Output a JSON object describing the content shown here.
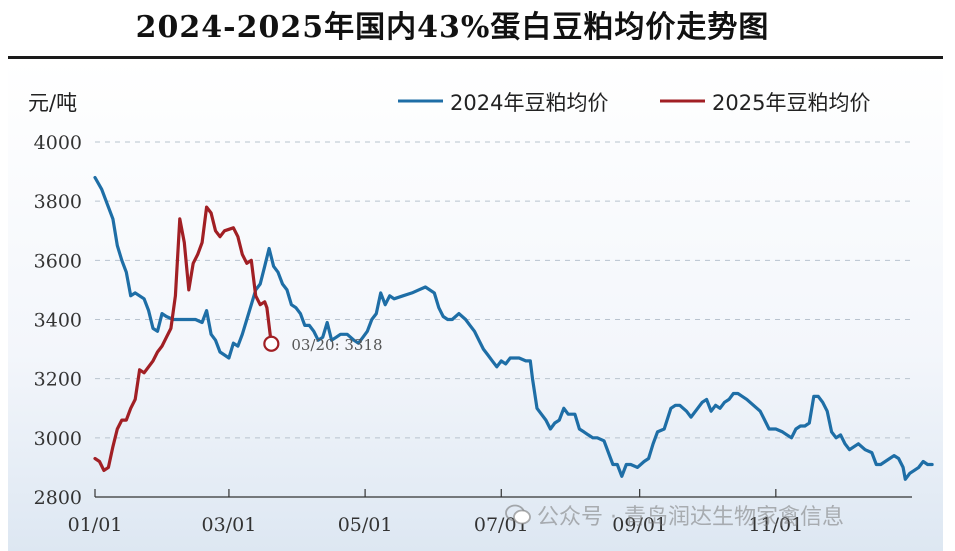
{
  "chart_data": {
    "type": "line",
    "title": "2024-2025年国内43%蛋白豆粕均价走势图",
    "ylabel": "元/吨",
    "ylim": [
      2800,
      4000
    ],
    "yticks": [
      "4000",
      "3800",
      "3600",
      "3400",
      "3200",
      "3000",
      "2800"
    ],
    "xticks": [
      "01/01",
      "03/01",
      "05/01",
      "07/01",
      "09/01",
      "11/01"
    ],
    "xtick_days": [
      0,
      60,
      121,
      182,
      244,
      305
    ],
    "xlim_days": [
      0,
      366
    ],
    "grid": "horizontal dashed",
    "legend_position": "top-right",
    "series": [
      {
        "name": "2024年豆粕均价",
        "color": "#1e6ea6",
        "points": [
          [
            0,
            3880
          ],
          [
            3,
            3840
          ],
          [
            6,
            3780
          ],
          [
            8,
            3740
          ],
          [
            10,
            3650
          ],
          [
            12,
            3600
          ],
          [
            14,
            3560
          ],
          [
            16,
            3480
          ],
          [
            18,
            3490
          ],
          [
            22,
            3470
          ],
          [
            24,
            3430
          ],
          [
            26,
            3370
          ],
          [
            28,
            3360
          ],
          [
            30,
            3420
          ],
          [
            32,
            3410
          ],
          [
            35,
            3400
          ],
          [
            40,
            3400
          ],
          [
            45,
            3400
          ],
          [
            48,
            3390
          ],
          [
            50,
            3430
          ],
          [
            52,
            3350
          ],
          [
            54,
            3330
          ],
          [
            56,
            3290
          ],
          [
            58,
            3280
          ],
          [
            60,
            3270
          ],
          [
            62,
            3320
          ],
          [
            64,
            3310
          ],
          [
            66,
            3350
          ],
          [
            68,
            3400
          ],
          [
            70,
            3450
          ],
          [
            72,
            3500
          ],
          [
            74,
            3520
          ],
          [
            76,
            3580
          ],
          [
            78,
            3640
          ],
          [
            80,
            3580
          ],
          [
            82,
            3560
          ],
          [
            84,
            3520
          ],
          [
            86,
            3500
          ],
          [
            88,
            3450
          ],
          [
            90,
            3440
          ],
          [
            92,
            3420
          ],
          [
            94,
            3380
          ],
          [
            96,
            3380
          ],
          [
            98,
            3360
          ],
          [
            100,
            3330
          ],
          [
            102,
            3340
          ],
          [
            104,
            3390
          ],
          [
            106,
            3330
          ],
          [
            108,
            3340
          ],
          [
            110,
            3350
          ],
          [
            113,
            3350
          ],
          [
            116,
            3330
          ],
          [
            118,
            3320
          ],
          [
            120,
            3340
          ],
          [
            122,
            3360
          ],
          [
            124,
            3400
          ],
          [
            126,
            3420
          ],
          [
            128,
            3490
          ],
          [
            130,
            3450
          ],
          [
            132,
            3480
          ],
          [
            134,
            3470
          ],
          [
            138,
            3480
          ],
          [
            142,
            3490
          ],
          [
            145,
            3500
          ],
          [
            148,
            3510
          ],
          [
            152,
            3490
          ],
          [
            154,
            3440
          ],
          [
            156,
            3410
          ],
          [
            158,
            3400
          ],
          [
            160,
            3400
          ],
          [
            163,
            3420
          ],
          [
            166,
            3400
          ],
          [
            168,
            3380
          ],
          [
            170,
            3360
          ],
          [
            172,
            3330
          ],
          [
            174,
            3300
          ],
          [
            176,
            3280
          ],
          [
            178,
            3260
          ],
          [
            180,
            3240
          ],
          [
            182,
            3260
          ],
          [
            184,
            3250
          ],
          [
            186,
            3270
          ],
          [
            190,
            3270
          ],
          [
            193,
            3260
          ],
          [
            195,
            3260
          ],
          [
            196,
            3200
          ],
          [
            198,
            3100
          ],
          [
            200,
            3080
          ],
          [
            202,
            3060
          ],
          [
            204,
            3030
          ],
          [
            206,
            3050
          ],
          [
            208,
            3060
          ],
          [
            210,
            3100
          ],
          [
            212,
            3080
          ],
          [
            215,
            3080
          ],
          [
            217,
            3030
          ],
          [
            219,
            3020
          ],
          [
            221,
            3010
          ],
          [
            223,
            3000
          ],
          [
            225,
            3000
          ],
          [
            228,
            2990
          ],
          [
            230,
            2950
          ],
          [
            232,
            2910
          ],
          [
            234,
            2910
          ],
          [
            236,
            2870
          ],
          [
            238,
            2910
          ],
          [
            240,
            2910
          ],
          [
            243,
            2900
          ],
          [
            246,
            2920
          ],
          [
            248,
            2930
          ],
          [
            250,
            2980
          ],
          [
            252,
            3020
          ],
          [
            255,
            3030
          ],
          [
            258,
            3100
          ],
          [
            260,
            3110
          ],
          [
            262,
            3110
          ],
          [
            265,
            3090
          ],
          [
            267,
            3070
          ],
          [
            270,
            3100
          ],
          [
            272,
            3120
          ],
          [
            274,
            3130
          ],
          [
            276,
            3090
          ],
          [
            278,
            3110
          ],
          [
            280,
            3100
          ],
          [
            282,
            3120
          ],
          [
            284,
            3130
          ],
          [
            286,
            3150
          ],
          [
            288,
            3150
          ],
          [
            290,
            3140
          ],
          [
            292,
            3130
          ],
          [
            295,
            3110
          ],
          [
            298,
            3090
          ],
          [
            300,
            3060
          ],
          [
            302,
            3030
          ],
          [
            305,
            3030
          ],
          [
            308,
            3020
          ],
          [
            310,
            3010
          ],
          [
            312,
            3000
          ],
          [
            314,
            3030
          ],
          [
            316,
            3040
          ],
          [
            318,
            3040
          ],
          [
            320,
            3050
          ],
          [
            322,
            3140
          ],
          [
            324,
            3140
          ],
          [
            326,
            3120
          ],
          [
            328,
            3090
          ],
          [
            330,
            3020
          ],
          [
            332,
            3000
          ],
          [
            334,
            3010
          ],
          [
            336,
            2980
          ],
          [
            338,
            2960
          ],
          [
            340,
            2970
          ],
          [
            342,
            2980
          ],
          [
            345,
            2960
          ],
          [
            348,
            2950
          ],
          [
            350,
            2910
          ],
          [
            352,
            2910
          ],
          [
            354,
            2920
          ],
          [
            356,
            2930
          ],
          [
            358,
            2940
          ],
          [
            360,
            2930
          ],
          [
            362,
            2900
          ],
          [
            363,
            2860
          ],
          [
            365,
            2880
          ],
          [
            367,
            2890
          ],
          [
            369,
            2900
          ],
          [
            371,
            2920
          ],
          [
            373,
            2910
          ],
          [
            375,
            2910
          ]
        ]
      },
      {
        "name": "2025年豆粕均价",
        "color": "#a11f24",
        "points": [
          [
            0,
            2930
          ],
          [
            2,
            2920
          ],
          [
            4,
            2890
          ],
          [
            6,
            2900
          ],
          [
            8,
            2970
          ],
          [
            10,
            3030
          ],
          [
            12,
            3060
          ],
          [
            14,
            3060
          ],
          [
            16,
            3100
          ],
          [
            18,
            3130
          ],
          [
            20,
            3230
          ],
          [
            22,
            3220
          ],
          [
            24,
            3240
          ],
          [
            26,
            3260
          ],
          [
            28,
            3290
          ],
          [
            30,
            3310
          ],
          [
            32,
            3340
          ],
          [
            34,
            3370
          ],
          [
            36,
            3480
          ],
          [
            38,
            3740
          ],
          [
            40,
            3660
          ],
          [
            42,
            3500
          ],
          [
            44,
            3590
          ],
          [
            46,
            3620
          ],
          [
            48,
            3660
          ],
          [
            50,
            3780
          ],
          [
            52,
            3760
          ],
          [
            54,
            3700
          ],
          [
            56,
            3680
          ],
          [
            58,
            3700
          ],
          [
            62,
            3710
          ],
          [
            64,
            3680
          ],
          [
            66,
            3620
          ],
          [
            68,
            3590
          ],
          [
            70,
            3600
          ],
          [
            72,
            3480
          ],
          [
            74,
            3450
          ],
          [
            76,
            3460
          ],
          [
            77,
            3440
          ],
          [
            79,
            3318
          ]
        ]
      }
    ],
    "annotation": {
      "text": "03/20: 3318",
      "x_day": 79,
      "y": 3318
    }
  },
  "watermark": "公众号 · 青岛润达生物家禽信息"
}
